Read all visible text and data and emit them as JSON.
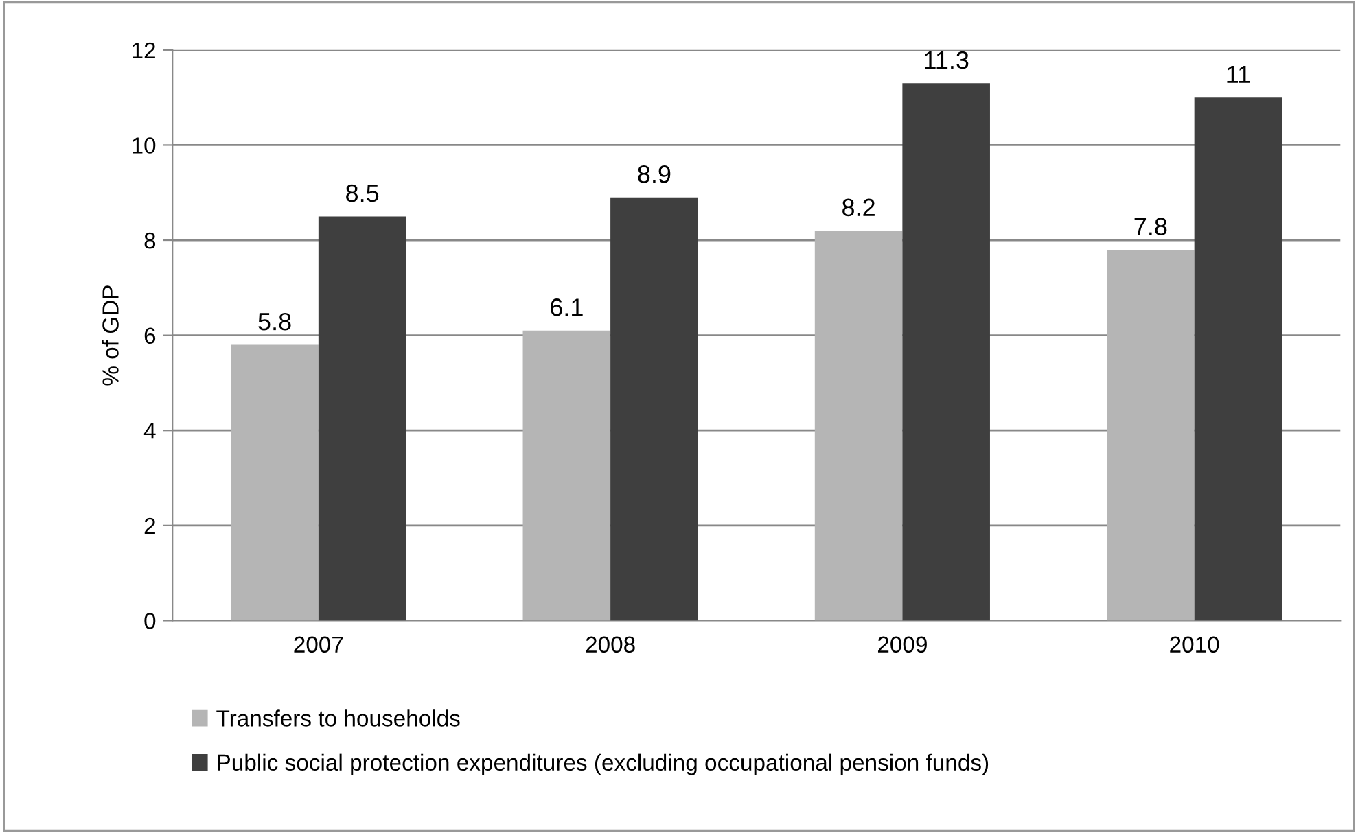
{
  "chart_data": {
    "type": "bar",
    "ylabel": "% of GDP",
    "categories": [
      "2007",
      "2008",
      "2009",
      "2010"
    ],
    "series": [
      {
        "name": "Transfers to households",
        "color": "#b5b5b5",
        "values": [
          5.8,
          6.1,
          8.2,
          7.8
        ]
      },
      {
        "name": "Public social protection expenditures (excluding occupational pension funds)",
        "color": "#3f3f3f",
        "values": [
          8.5,
          8.9,
          11.3,
          11
        ]
      }
    ],
    "ylim": [
      0,
      12
    ],
    "yticks": [
      0,
      2,
      4,
      6,
      8,
      10,
      12
    ],
    "grid": "y",
    "legend": "bottom",
    "data_labels": true
  }
}
